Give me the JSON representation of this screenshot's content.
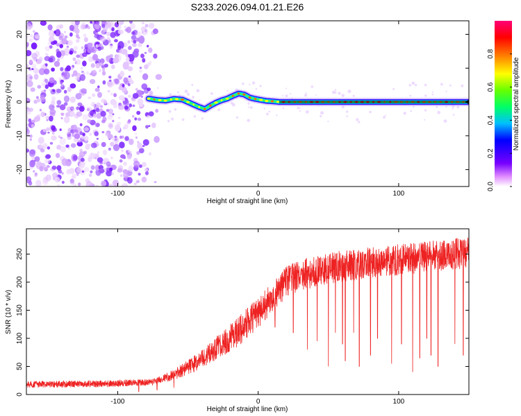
{
  "figure_title": "S233.2026.094.01.21.E26",
  "colors": {
    "snr_line": "#ee2222",
    "track": "#000000",
    "colormap": [
      "#ffffff",
      "#e08cff",
      "#7700ff",
      "#0000ff",
      "#00bfff",
      "#00ff66",
      "#66ff00",
      "#ffff00",
      "#ff8800",
      "#ff0000",
      "#ff0077"
    ]
  },
  "chart_data": [
    {
      "type": "heatmap",
      "title": "",
      "xlabel": "Height of straight line (km)",
      "ylabel": "Frequency (Hz)",
      "xlim": [
        -165,
        150
      ],
      "ylim": [
        -25,
        24
      ],
      "x_ticks": [
        -100,
        0,
        100
      ],
      "x_tick_labels": [
        "-100",
        "0",
        "100"
      ],
      "y_ticks": [
        -20,
        -10,
        0,
        10,
        20
      ],
      "y_tick_labels": [
        "-20",
        "-10",
        "0",
        "10",
        "20"
      ],
      "colorbar": {
        "label": "Normalized spectral amplitude",
        "range": [
          0,
          1
        ],
        "ticks": [
          0,
          0.2,
          0.4,
          0.6,
          0.8
        ],
        "tick_labels": [
          "0.0",
          "0.2",
          "0.4",
          "0.6",
          "0.8"
        ]
      },
      "noise_region_x": [
        -165,
        -72
      ],
      "track": {
        "x": [
          -78,
          -72,
          -66,
          -60,
          -54,
          -48,
          -42,
          -38,
          -34,
          -30,
          -26,
          -22,
          -18,
          -14,
          -10,
          -6,
          -2,
          2,
          6,
          10,
          15,
          150
        ],
        "freq": [
          1.0,
          0.6,
          0.4,
          0.9,
          0.7,
          -0.4,
          -1.5,
          -2.1,
          -1.1,
          -0.2,
          0.5,
          1.0,
          1.8,
          2.5,
          2.2,
          1.3,
          0.9,
          0.6,
          0.3,
          0.2,
          0.0,
          0.0
        ]
      }
    },
    {
      "type": "line",
      "title": "",
      "xlabel": "Height of straight line (km)",
      "ylabel": "SNR (10 * v/v)",
      "xlim": [
        -165,
        150
      ],
      "ylim": [
        0,
        295
      ],
      "x_ticks": [
        -100,
        0,
        100
      ],
      "x_tick_labels": [
        "-100",
        "0",
        "100"
      ],
      "y_ticks": [
        0,
        50,
        100,
        150,
        200,
        250
      ],
      "y_tick_labels": [
        "0",
        "50",
        "100",
        "150",
        "200",
        "250"
      ],
      "series": [
        {
          "name": "SNR",
          "trend_x": [
            -165,
            -110,
            -75,
            -60,
            -45,
            -30,
            -15,
            0,
            10,
            20,
            30,
            50,
            80,
            110,
            150
          ],
          "trend_y": [
            18,
            19,
            22,
            35,
            55,
            82,
            110,
            145,
            175,
            200,
            212,
            225,
            235,
            242,
            253
          ],
          "spikes_x": [
            -85,
            -72,
            -60,
            12,
            25,
            35,
            42,
            50,
            55,
            60,
            62,
            68,
            72,
            80,
            85,
            95,
            102,
            110,
            115,
            120,
            123,
            128,
            140,
            146
          ],
          "spikes_y": [
            5,
            8,
            12,
            120,
            110,
            80,
            95,
            50,
            110,
            90,
            60,
            110,
            50,
            70,
            100,
            55,
            90,
            40,
            65,
            100,
            70,
            50,
            90,
            70
          ]
        }
      ]
    }
  ]
}
